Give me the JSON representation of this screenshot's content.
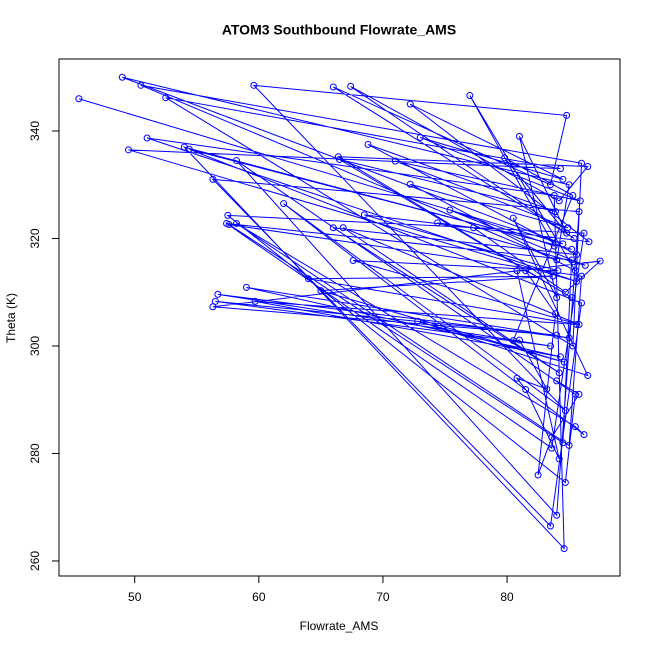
{
  "chart_data": {
    "type": "line",
    "title": "ATOM3 Southbound Flowrate_AMS",
    "xlabel": "Flowrate_AMS",
    "ylabel": "Theta (K)",
    "x": [
      45.5,
      84.5,
      49,
      85,
      84,
      50.5,
      86,
      85.3,
      52.5,
      84.3,
      49.5,
      85.6,
      51,
      83.8,
      84.6,
      54,
      85.2,
      54.4,
      86,
      83.5,
      56.3,
      85.8,
      84,
      58.2,
      85.5,
      84.7,
      57.5,
      86.2,
      83.6,
      57.4,
      85.2,
      84.5,
      57.6,
      86,
      85,
      58.2,
      85.5,
      86.2,
      62,
      84.7,
      59.6,
      84.8,
      83.5,
      66,
      85.4,
      67.4,
      84.2,
      86.5,
      66.4,
      85.2,
      66.5,
      83.9,
      68.8,
      85.6,
      66,
      84.2,
      66.8,
      85.8,
      67.6,
      84.1,
      68.5,
      86.6,
      72.2,
      84.5,
      73,
      85.9,
      71,
      84.9,
      72.2,
      85.5,
      77,
      83.8,
      75.4,
      86.3,
      74.4,
      77.3,
      84.7,
      87.5,
      56.3,
      84,
      56.5,
      83.5,
      56.7,
      85,
      59,
      84.3,
      59.7,
      85.6,
      64,
      83.7,
      65,
      84.6,
      72.8,
      86.5,
      80.5,
      84,
      81,
      84.8,
      79.8,
      85.3,
      80.5,
      81,
      83.2,
      80.8,
      81.5,
      84.2,
      80.8,
      81.5,
      83.9,
      82.5,
      83.6,
      85.8,
      84
    ],
    "series": [
      {
        "name": "Theta",
        "color": "#0000ff",
        "values": [
          346,
          319,
          350,
          330,
          316,
          348.5,
          334,
          300,
          346.2,
          333,
          336.5,
          312,
          338.7,
          328,
          262.3,
          337,
          318,
          336.6,
          308,
          266.5,
          331,
          325,
          268.5,
          334.5,
          291,
          274.6,
          324.3,
          321,
          281,
          322.8,
          316,
          282,
          322.6,
          313,
          281.5,
          322.8,
          285,
          283.5,
          326.5,
          288,
          348.5,
          342.9,
          330,
          348.2,
          320,
          348.3,
          327,
          333.4,
          335.2,
          309,
          334.7,
          325,
          337.5,
          317,
          322,
          295,
          322,
          304,
          315.9,
          314,
          324.4,
          319.4,
          345,
          331,
          338.8,
          327,
          334.4,
          322,
          330.1,
          314,
          346.6,
          318.6,
          325.3,
          315,
          322.9,
          322,
          310,
          315.8,
          307.3,
          302,
          308.3,
          300,
          309.6,
          301.5,
          310.9,
          298,
          308.3,
          304,
          312.5,
          313,
          310.3,
          297,
          304.6,
          294.5,
          323.8,
          309,
          339,
          321,
          335,
          328,
          301,
          301.1,
          292,
          294,
          291.9,
          279,
          314,
          314,
          306,
          276,
          283,
          291,
          293.5
        ]
      }
    ],
    "xlim": [
      43.9,
      89.1
    ],
    "ylim": [
      257.2,
      353.4
    ],
    "xticks": [
      50,
      60,
      70,
      80
    ],
    "yticks": [
      260,
      280,
      300,
      320,
      340
    ]
  }
}
